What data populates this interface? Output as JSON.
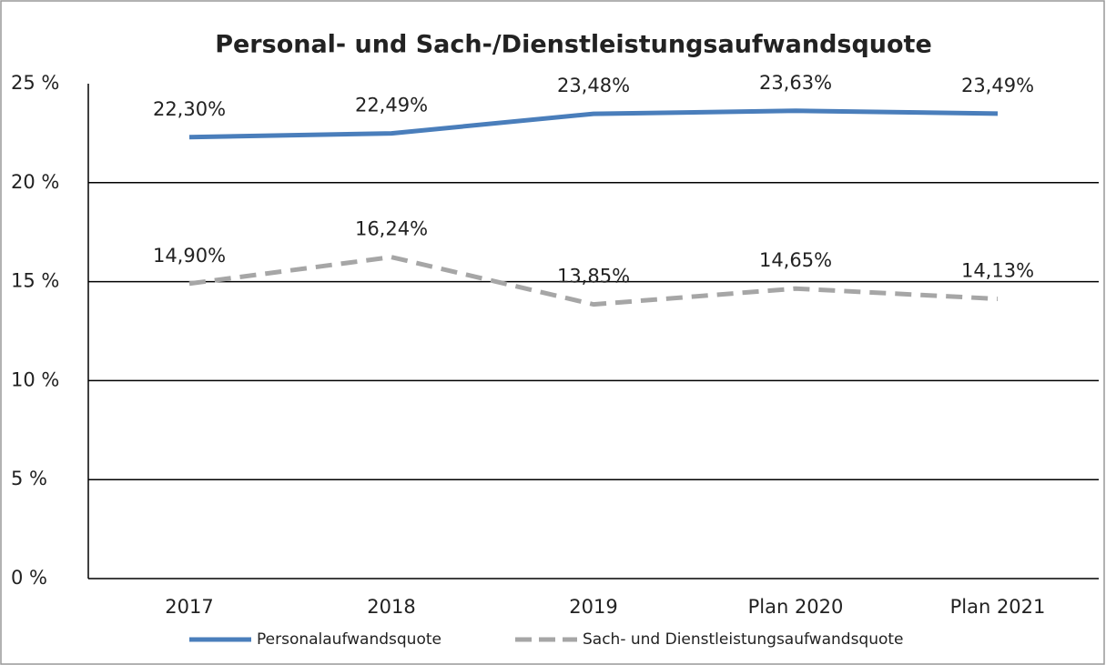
{
  "chart_data": {
    "type": "line",
    "title": "Personal- und Sach-/Dienstleistungsaufwandsquote",
    "categories": [
      "2017",
      "2018",
      "2019",
      "Plan 2020",
      "Plan 2021"
    ],
    "series": [
      {
        "name": "Personalaufwandsquote",
        "color": "#4a7ebb",
        "dashed": false,
        "values": [
          22.3,
          22.49,
          23.48,
          23.63,
          23.49
        ],
        "value_labels": [
          "22,30%",
          "22,49%",
          "23,48%",
          "23,63%",
          "23,49%"
        ]
      },
      {
        "name": "Sach- und Dienstleistungsaufwandsquote",
        "color": "#a6a6a6",
        "dashed": true,
        "values": [
          14.9,
          16.24,
          13.85,
          14.65,
          14.13
        ],
        "value_labels": [
          "14,90%",
          "16,24%",
          "13,85%",
          "14,65%",
          "14,13%"
        ]
      }
    ],
    "ylim": [
      0,
      25
    ],
    "yticks": [
      {
        "value": 0,
        "label": "0 %"
      },
      {
        "value": 5,
        "label": "5 %"
      },
      {
        "value": 10,
        "label": "10 %"
      },
      {
        "value": 15,
        "label": "15 %"
      },
      {
        "value": 20,
        "label": "20 %"
      },
      {
        "value": 25,
        "label": "25 %"
      }
    ],
    "grid": true,
    "legend": "bottom"
  }
}
